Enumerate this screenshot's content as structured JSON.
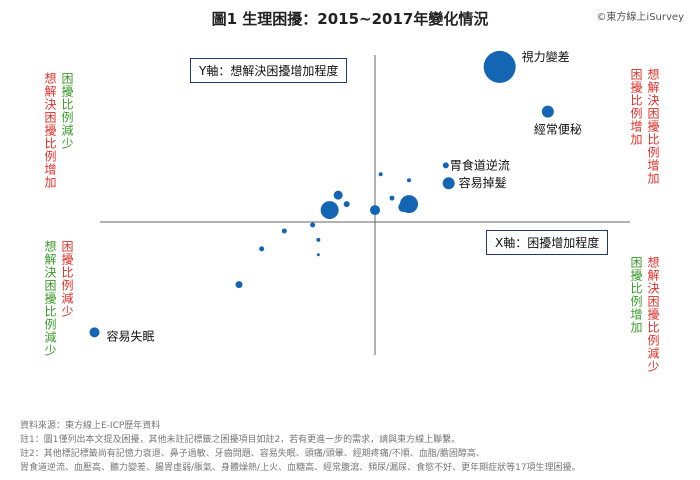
{
  "title": "圖1 生理困擾：2015~2017年變化情況",
  "source_credit": "©東方線上iSurvey",
  "quadrant_labels": {
    "left_top": {
      "col1": "想解決困擾比例增加",
      "col2": "困擾比例減少"
    },
    "left_bottom": {
      "col1": "想解決困擾比例減少",
      "col2": "困擾比例減少"
    },
    "right_top": {
      "col1": "困擾比例增加",
      "col2": "想解決困擾比例增加"
    },
    "right_bottom": {
      "col1": "困擾比例增加",
      "col2": "想解決困擾比例減少"
    }
  },
  "y_axis_label": "Y軸：想解決困擾增加程度",
  "x_axis_label": "X軸：困擾增加程度",
  "notes": [
    "資料來源：東方線上E-ICP歷年資料",
    "註1：圖1僅列出本文提及困擾，其他未註記標籤之困擾項目如註2，若有更進一步的需求，請與東方線上聯繫。",
    "註2：其他標記標籤尚有記憶力衰退、鼻子過敏、牙齒問題、容易失眠、頭痛/頭暈、經期疼痛/不順、血脂/膽固醇高、",
    "胃食道逆流、血壓高、聽力變差、腸胃虛弱/脹氣、身體燥熱/上火、血糖高、經常腹瀉、頻尿/漏尿、食慾不好、更年期症狀等17項生理困擾。"
  ],
  "colors": {
    "point": "#1565b5",
    "axis": "#666666"
  },
  "chart_data": {
    "type": "scatter",
    "xlim": [
      -5.5,
      4.5
    ],
    "ylim": [
      -2.6,
      2.8
    ],
    "points": [
      {
        "label": "視力變差",
        "x": 2.2,
        "y": 2.6,
        "size": 16
      },
      {
        "label": "經常便秘",
        "x": 3.05,
        "y": 1.85,
        "size": 6
      },
      {
        "label": "胃食道逆流",
        "x": 1.25,
        "y": 0.95,
        "size": 3
      },
      {
        "label": "容易掉髮",
        "x": 1.3,
        "y": 0.65,
        "size": 6
      },
      {
        "label": "容易失眠",
        "x": -4.95,
        "y": -1.85,
        "size": 5
      },
      {
        "label": "",
        "x": 0.6,
        "y": 0.3,
        "size": 9
      },
      {
        "label": "",
        "x": 0.5,
        "y": 0.25,
        "size": 5
      },
      {
        "label": "",
        "x": 0.3,
        "y": 0.4,
        "size": 2.5
      },
      {
        "label": "",
        "x": 0.6,
        "y": 0.7,
        "size": 2
      },
      {
        "label": "",
        "x": 0.1,
        "y": 0.8,
        "size": 2
      },
      {
        "label": "",
        "x": 0.0,
        "y": 0.2,
        "size": 5
      },
      {
        "label": "",
        "x": -0.5,
        "y": 0.3,
        "size": 3
      },
      {
        "label": "",
        "x": -0.8,
        "y": 0.2,
        "size": 9
      },
      {
        "label": "",
        "x": -0.65,
        "y": 0.45,
        "size": 4.5
      },
      {
        "label": "",
        "x": -1.1,
        "y": -0.05,
        "size": 2.5
      },
      {
        "label": "",
        "x": -1.0,
        "y": -0.3,
        "size": 2
      },
      {
        "label": "",
        "x": -1.6,
        "y": -0.15,
        "size": 2.5
      },
      {
        "label": "",
        "x": -2.0,
        "y": -0.45,
        "size": 2.5
      },
      {
        "label": "",
        "x": -1.0,
        "y": -0.55,
        "size": 1.5
      },
      {
        "label": "",
        "x": -2.4,
        "y": -1.05,
        "size": 3.5
      }
    ]
  }
}
